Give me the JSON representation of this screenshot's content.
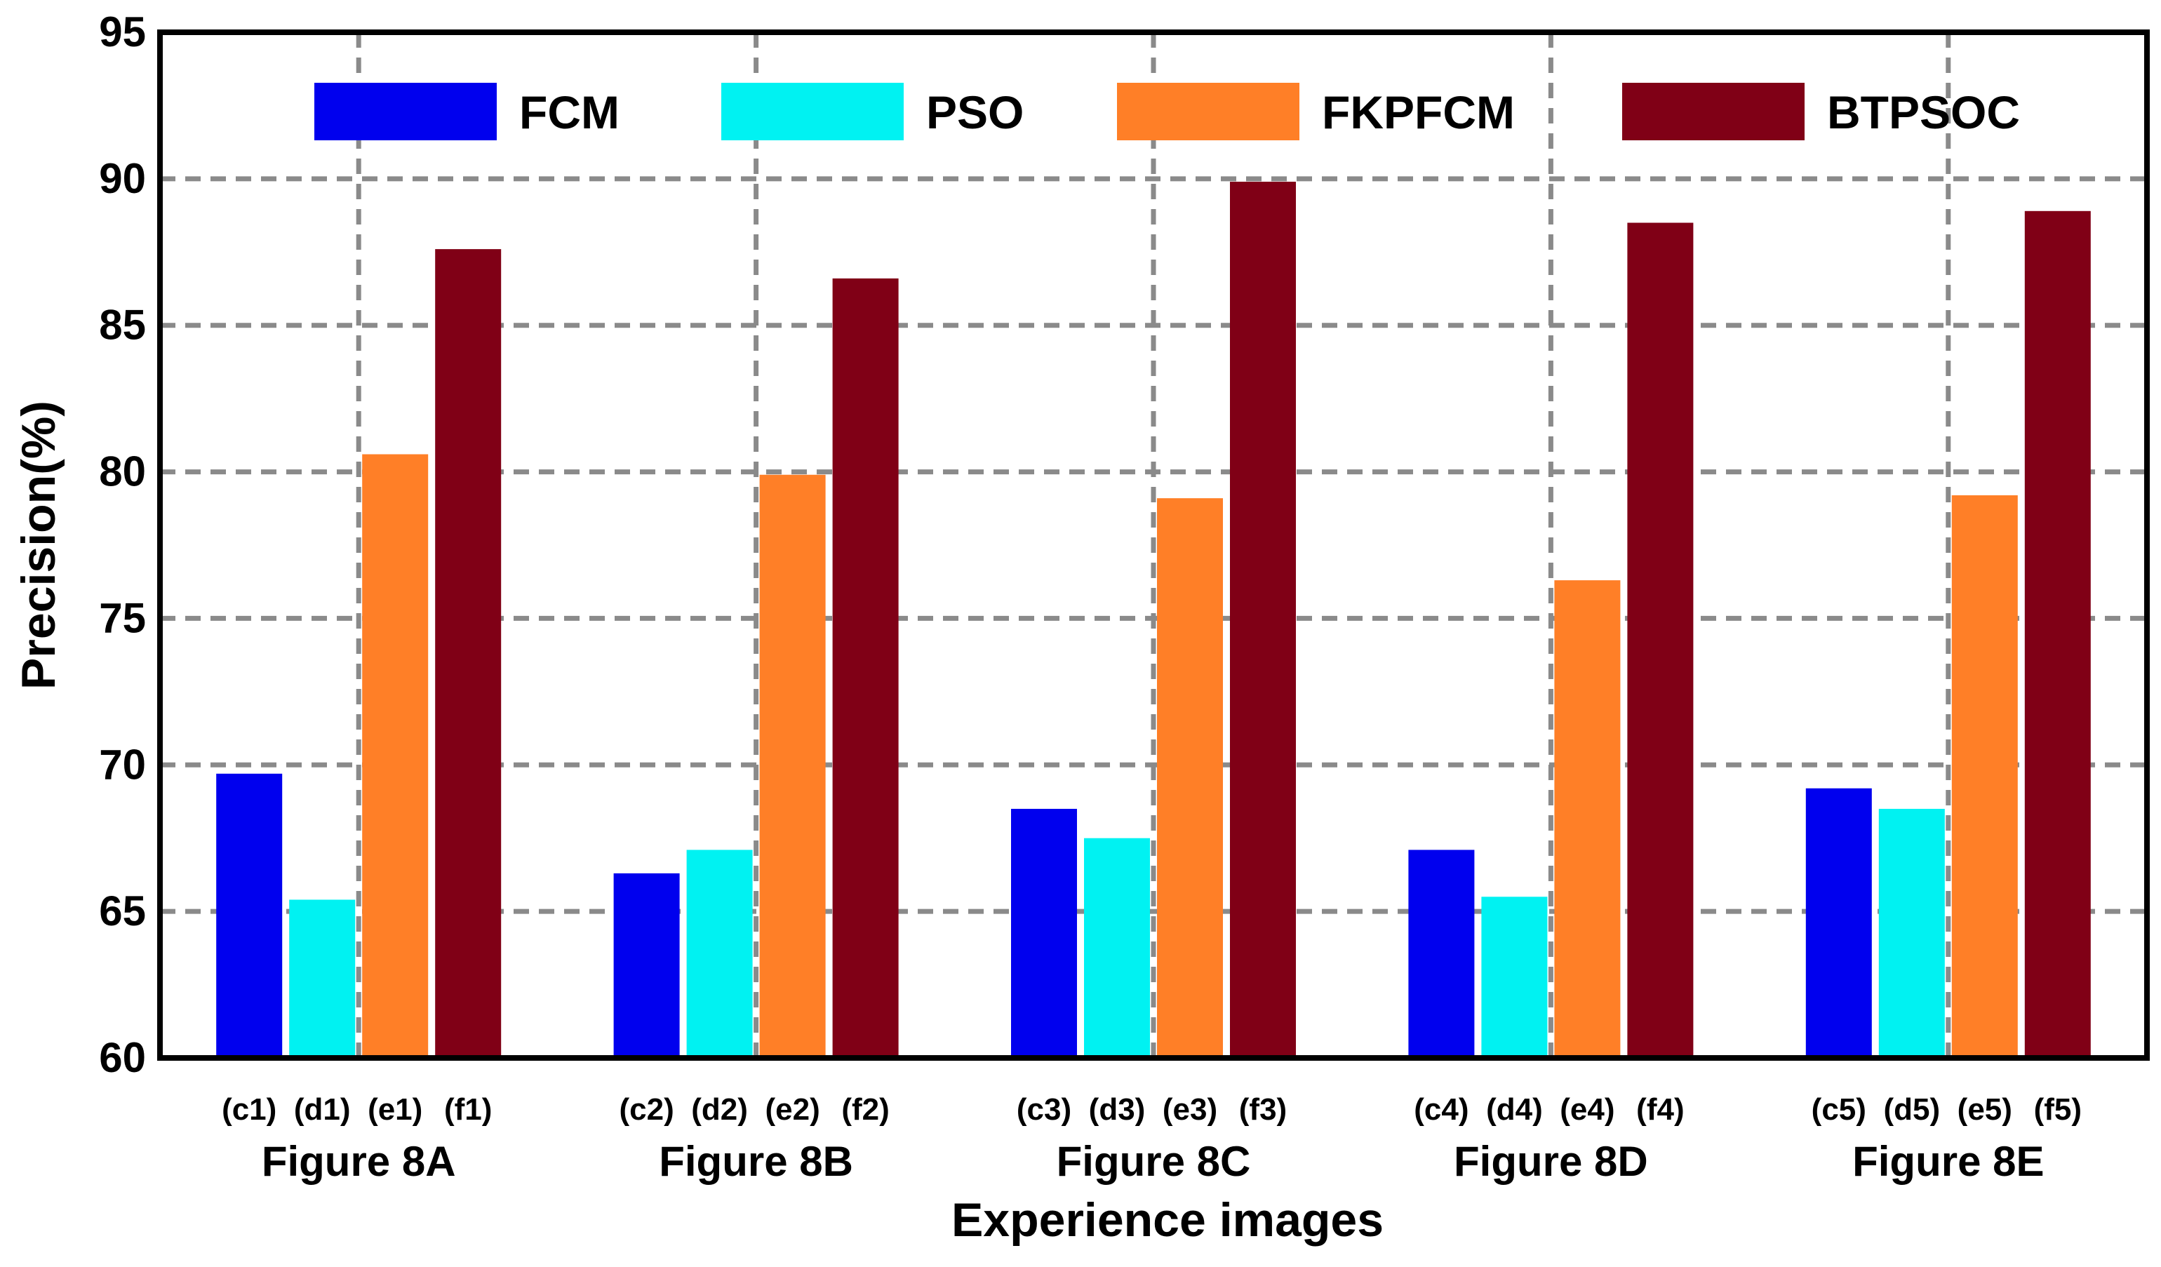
{
  "chart_data": {
    "type": "bar",
    "title": "",
    "xlabel": "Experience images",
    "ylabel": "Precision(%)",
    "ylim": [
      60,
      95
    ],
    "yticks": [
      60,
      65,
      70,
      75,
      80,
      85,
      90,
      95
    ],
    "grid": true,
    "legend_position": "top",
    "categories": [
      "Figure 8A",
      "Figure 8B",
      "Figure 8C",
      "Figure 8D",
      "Figure 8E"
    ],
    "sub_labels": [
      [
        "(c1)",
        "(d1)",
        "(e1)",
        "(f1)"
      ],
      [
        "(c2)",
        "(d2)",
        "(e2)",
        "(f2)"
      ],
      [
        "(c3)",
        "(d3)",
        "(e3)",
        "(f3)"
      ],
      [
        "(c4)",
        "(d4)",
        "(e4)",
        "(f4)"
      ],
      [
        "(c5)",
        "(d5)",
        "(e5)",
        "(f5)"
      ]
    ],
    "series": [
      {
        "name": "FCM",
        "color": "#0000ee",
        "values": [
          69.7,
          66.3,
          68.5,
          67.1,
          69.2
        ]
      },
      {
        "name": "PSO",
        "color": "#00f2f2",
        "values": [
          65.4,
          67.1,
          67.5,
          65.5,
          68.5
        ]
      },
      {
        "name": "FKPFCM",
        "color": "#ff7f27",
        "values": [
          80.6,
          79.9,
          79.1,
          76.3,
          79.2
        ]
      },
      {
        "name": "BTPSOC",
        "color": "#800016",
        "values": [
          87.6,
          86.6,
          89.9,
          88.5,
          88.9
        ]
      }
    ]
  }
}
